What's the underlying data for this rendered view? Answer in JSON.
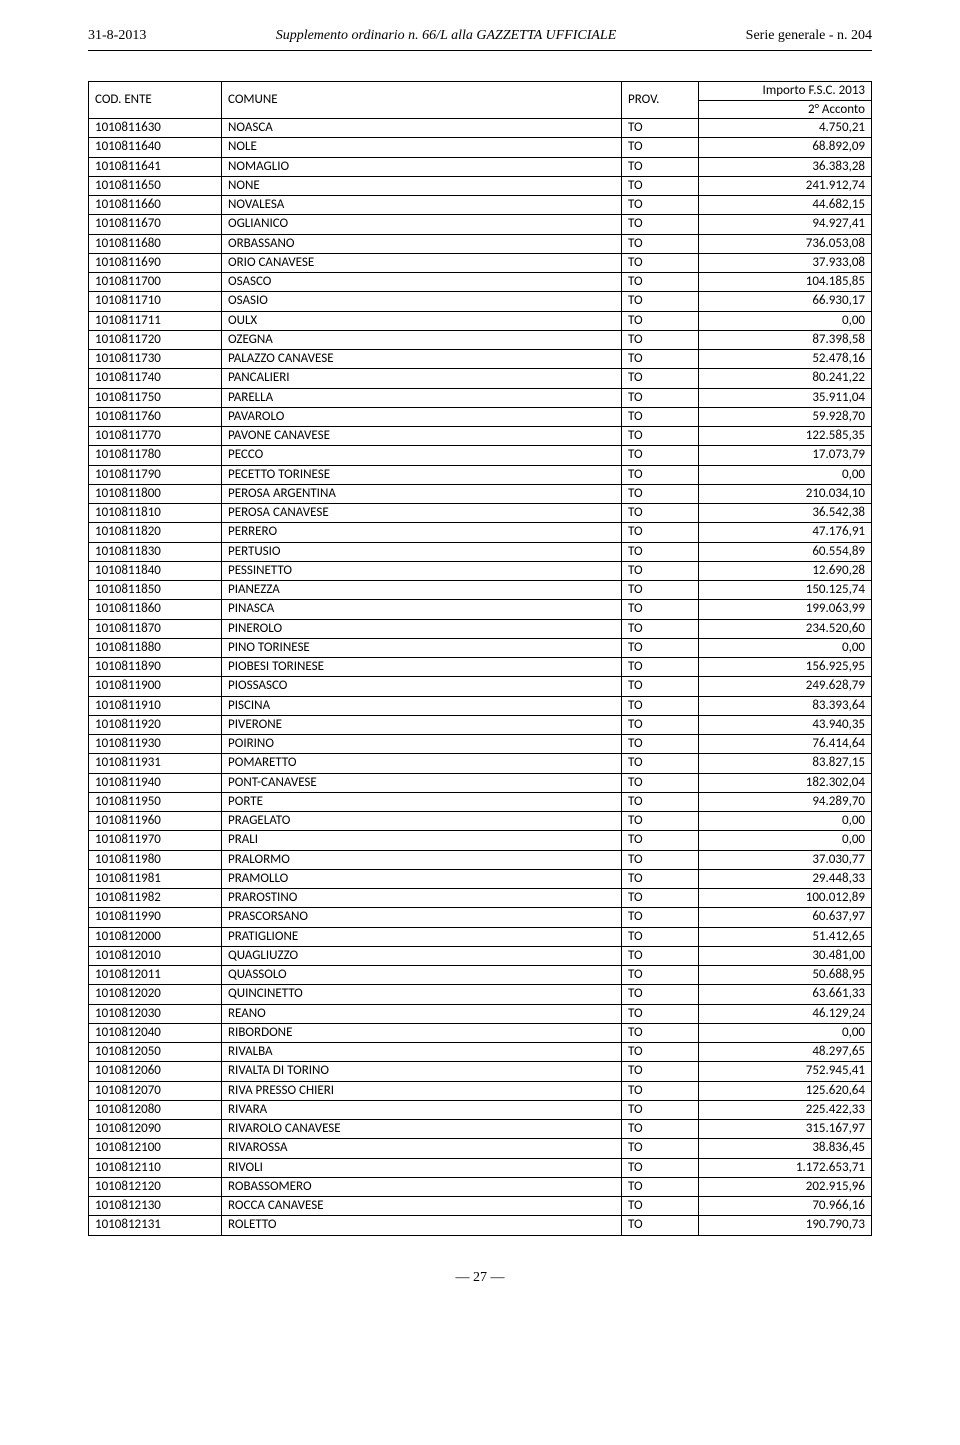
{
  "header": {
    "date": "31-8-2013",
    "center": "Supplemento ordinario n. 66/L alla GAZZETTA UFFICIALE",
    "right": "Serie generale - n. 204"
  },
  "table": {
    "columns": {
      "code": "COD. ENTE",
      "comune": "COMUNE",
      "prov": "PROV.",
      "importo_line1": "Importo F.S.C. 2013",
      "importo_line2": "2° Acconto"
    },
    "rows": [
      {
        "code": "1010811630",
        "name": "NOASCA",
        "prov": "TO",
        "val": "4.750,21"
      },
      {
        "code": "1010811640",
        "name": "NOLE",
        "prov": "TO",
        "val": "68.892,09"
      },
      {
        "code": "1010811641",
        "name": "NOMAGLIO",
        "prov": "TO",
        "val": "36.383,28"
      },
      {
        "code": "1010811650",
        "name": "NONE",
        "prov": "TO",
        "val": "241.912,74"
      },
      {
        "code": "1010811660",
        "name": "NOVALESA",
        "prov": "TO",
        "val": "44.682,15"
      },
      {
        "code": "1010811670",
        "name": "OGLIANICO",
        "prov": "TO",
        "val": "94.927,41"
      },
      {
        "code": "1010811680",
        "name": "ORBASSANO",
        "prov": "TO",
        "val": "736.053,08"
      },
      {
        "code": "1010811690",
        "name": "ORIO CANAVESE",
        "prov": "TO",
        "val": "37.933,08"
      },
      {
        "code": "1010811700",
        "name": "OSASCO",
        "prov": "TO",
        "val": "104.185,85"
      },
      {
        "code": "1010811710",
        "name": "OSASIO",
        "prov": "TO",
        "val": "66.930,17"
      },
      {
        "code": "1010811711",
        "name": "OULX",
        "prov": "TO",
        "val": "0,00"
      },
      {
        "code": "1010811720",
        "name": "OZEGNA",
        "prov": "TO",
        "val": "87.398,58"
      },
      {
        "code": "1010811730",
        "name": "PALAZZO CANAVESE",
        "prov": "TO",
        "val": "52.478,16"
      },
      {
        "code": "1010811740",
        "name": "PANCALIERI",
        "prov": "TO",
        "val": "80.241,22"
      },
      {
        "code": "1010811750",
        "name": "PARELLA",
        "prov": "TO",
        "val": "35.911,04"
      },
      {
        "code": "1010811760",
        "name": "PAVAROLO",
        "prov": "TO",
        "val": "59.928,70"
      },
      {
        "code": "1010811770",
        "name": "PAVONE CANAVESE",
        "prov": "TO",
        "val": "122.585,35"
      },
      {
        "code": "1010811780",
        "name": "PECCO",
        "prov": "TO",
        "val": "17.073,79"
      },
      {
        "code": "1010811790",
        "name": "PECETTO TORINESE",
        "prov": "TO",
        "val": "0,00"
      },
      {
        "code": "1010811800",
        "name": "PEROSA ARGENTINA",
        "prov": "TO",
        "val": "210.034,10"
      },
      {
        "code": "1010811810",
        "name": "PEROSA CANAVESE",
        "prov": "TO",
        "val": "36.542,38"
      },
      {
        "code": "1010811820",
        "name": "PERRERO",
        "prov": "TO",
        "val": "47.176,91"
      },
      {
        "code": "1010811830",
        "name": "PERTUSIO",
        "prov": "TO",
        "val": "60.554,89"
      },
      {
        "code": "1010811840",
        "name": "PESSINETTO",
        "prov": "TO",
        "val": "12.690,28"
      },
      {
        "code": "1010811850",
        "name": "PIANEZZA",
        "prov": "TO",
        "val": "150.125,74"
      },
      {
        "code": "1010811860",
        "name": "PINASCA",
        "prov": "TO",
        "val": "199.063,99"
      },
      {
        "code": "1010811870",
        "name": "PINEROLO",
        "prov": "TO",
        "val": "234.520,60"
      },
      {
        "code": "1010811880",
        "name": "PINO TORINESE",
        "prov": "TO",
        "val": "0,00"
      },
      {
        "code": "1010811890",
        "name": "PIOBESI TORINESE",
        "prov": "TO",
        "val": "156.925,95"
      },
      {
        "code": "1010811900",
        "name": "PIOSSASCO",
        "prov": "TO",
        "val": "249.628,79"
      },
      {
        "code": "1010811910",
        "name": "PISCINA",
        "prov": "TO",
        "val": "83.393,64"
      },
      {
        "code": "1010811920",
        "name": "PIVERONE",
        "prov": "TO",
        "val": "43.940,35"
      },
      {
        "code": "1010811930",
        "name": "POIRINO",
        "prov": "TO",
        "val": "76.414,64"
      },
      {
        "code": "1010811931",
        "name": "POMARETTO",
        "prov": "TO",
        "val": "83.827,15"
      },
      {
        "code": "1010811940",
        "name": "PONT-CANAVESE",
        "prov": "TO",
        "val": "182.302,04"
      },
      {
        "code": "1010811950",
        "name": "PORTE",
        "prov": "TO",
        "val": "94.289,70"
      },
      {
        "code": "1010811960",
        "name": "PRAGELATO",
        "prov": "TO",
        "val": "0,00"
      },
      {
        "code": "1010811970",
        "name": "PRALI",
        "prov": "TO",
        "val": "0,00"
      },
      {
        "code": "1010811980",
        "name": "PRALORMO",
        "prov": "TO",
        "val": "37.030,77"
      },
      {
        "code": "1010811981",
        "name": "PRAMOLLO",
        "prov": "TO",
        "val": "29.448,33"
      },
      {
        "code": "1010811982",
        "name": "PRAROSTINO",
        "prov": "TO",
        "val": "100.012,89"
      },
      {
        "code": "1010811990",
        "name": "PRASCORSANO",
        "prov": "TO",
        "val": "60.637,97"
      },
      {
        "code": "1010812000",
        "name": "PRATIGLIONE",
        "prov": "TO",
        "val": "51.412,65"
      },
      {
        "code": "1010812010",
        "name": "QUAGLIUZZO",
        "prov": "TO",
        "val": "30.481,00"
      },
      {
        "code": "1010812011",
        "name": "QUASSOLO",
        "prov": "TO",
        "val": "50.688,95"
      },
      {
        "code": "1010812020",
        "name": "QUINCINETTO",
        "prov": "TO",
        "val": "63.661,33"
      },
      {
        "code": "1010812030",
        "name": "REANO",
        "prov": "TO",
        "val": "46.129,24"
      },
      {
        "code": "1010812040",
        "name": "RIBORDONE",
        "prov": "TO",
        "val": "0,00"
      },
      {
        "code": "1010812050",
        "name": "RIVALBA",
        "prov": "TO",
        "val": "48.297,65"
      },
      {
        "code": "1010812060",
        "name": "RIVALTA DI TORINO",
        "prov": "TO",
        "val": "752.945,41"
      },
      {
        "code": "1010812070",
        "name": "RIVA PRESSO CHIERI",
        "prov": "TO",
        "val": "125.620,64"
      },
      {
        "code": "1010812080",
        "name": "RIVARA",
        "prov": "TO",
        "val": "225.422,33"
      },
      {
        "code": "1010812090",
        "name": "RIVAROLO CANAVESE",
        "prov": "TO",
        "val": "315.167,97"
      },
      {
        "code": "1010812100",
        "name": "RIVAROSSA",
        "prov": "TO",
        "val": "38.836,45"
      },
      {
        "code": "1010812110",
        "name": "RIVOLI",
        "prov": "TO",
        "val": "1.172.653,71"
      },
      {
        "code": "1010812120",
        "name": "ROBASSOMERO",
        "prov": "TO",
        "val": "202.915,96"
      },
      {
        "code": "1010812130",
        "name": "ROCCA CANAVESE",
        "prov": "TO",
        "val": "70.966,16"
      },
      {
        "code": "1010812131",
        "name": "ROLETTO",
        "prov": "TO",
        "val": "190.790,73"
      }
    ]
  },
  "pageNumber": "— 27 —"
}
